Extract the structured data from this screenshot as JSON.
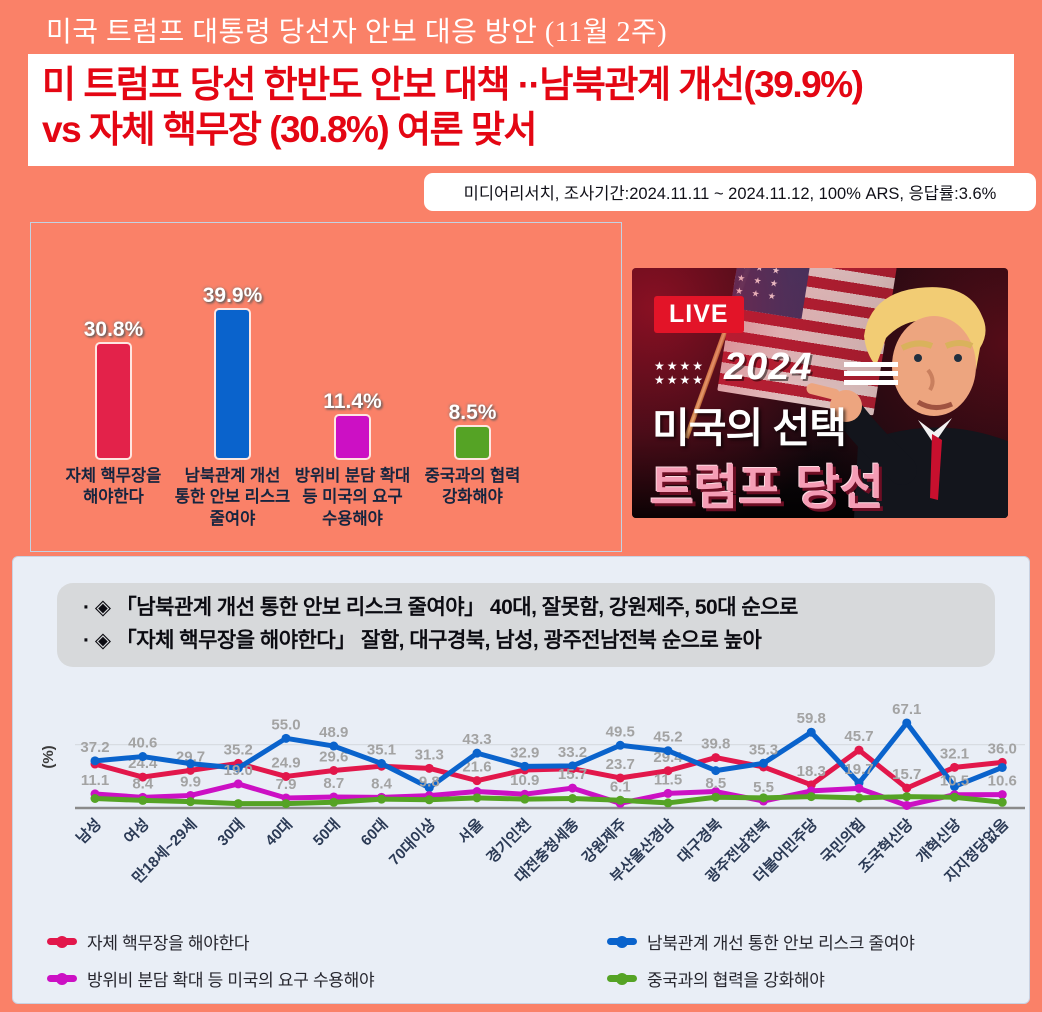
{
  "page_title": "미국 트럼프 대통령 당선자 안보 대응 방안 (11월 2주)",
  "headline": {
    "line1": "미 트럼프 당선 한반도 안보 대책 ··남북관계 개선(39.9%)",
    "line2": "vs 자체 핵무장 (30.8%) 여론 맞서"
  },
  "survey_note": "미디어리서치, 조사기간:2024.11.11 ~ 2024.11.12, 100% ARS, 응답률:3.6%",
  "banner": {
    "live_badge": "LIVE",
    "stars_row1": "★★★★",
    "stars_row2": "★★★★",
    "year": "2024",
    "line1": "미국의 선택",
    "line2": "트럼프 당선"
  },
  "insights": {
    "bullet1": "· ◈ 「남북관계 개선 통한 안보 리스크 줄여야」 40대, 잘못함, 강원제주, 50대 순으로",
    "bullet2": "· ◈ 「자체 핵무장을 해야한다」 잘함, 대구경북, 남성, 광주전남전북 순으로 높아"
  },
  "chart_data": [
    {
      "type": "bar",
      "title": "",
      "categories": [
        [
          "자체 핵무장을",
          "해야한다"
        ],
        [
          "남북관계 개선",
          "통한 안보 리스크",
          "줄여야"
        ],
        [
          "방위비 분담 확대",
          "등 미국의 요구",
          "수용해야"
        ],
        [
          "중국과의 협력",
          "강화해야"
        ]
      ],
      "values": [
        30.8,
        39.9,
        11.4,
        8.5
      ],
      "value_labels": [
        "30.8%",
        "39.9%",
        "11.4%",
        "8.5%"
      ],
      "colors": [
        "#E3224A",
        "#0A63CC",
        "#CC10C4",
        "#55A325"
      ],
      "ylim": [
        0,
        45
      ],
      "grid": false
    },
    {
      "type": "line",
      "ylabel": "(%)",
      "ylim": [
        0,
        88
      ],
      "gridline_at": 50,
      "legend_position": "bottom",
      "categories": [
        "남성",
        "여성",
        "만18세~29세",
        "30대",
        "40대",
        "50대",
        "60대",
        "70대이상",
        "서울",
        "경기인천",
        "대전충청세종",
        "강원제주",
        "부산울산경남",
        "대구경북",
        "광주전남전북",
        "더불어민주당",
        "국민의힘",
        "조국혁신당",
        "개혁신당",
        "지지정당없음"
      ],
      "series": [
        {
          "name": "자체 핵무장을 해야한다",
          "color": "#E2174B",
          "values": [
            34.7,
            24.4,
            29.7,
            35.2,
            24.9,
            29.6,
            33.0,
            31.3,
            21.6,
            30.0,
            31.0,
            23.7,
            29.4,
            39.8,
            32.4,
            18.3,
            45.7,
            15.7,
            32.1,
            36.0
          ],
          "labeled": [
            false,
            true,
            true,
            true,
            true,
            true,
            false,
            true,
            true,
            false,
            false,
            true,
            true,
            true,
            false,
            true,
            true,
            true,
            true,
            true
          ]
        },
        {
          "name": "남북관계 개선 통한 안보 리스크 줄여야",
          "color": "#0A63CC",
          "values": [
            37.2,
            40.6,
            35.0,
            31.5,
            55.0,
            48.9,
            35.1,
            16.0,
            43.3,
            32.9,
            33.2,
            49.5,
            45.2,
            29.5,
            35.3,
            59.8,
            19.7,
            67.1,
            17.0,
            32.0
          ],
          "labeled": [
            true,
            true,
            false,
            false,
            true,
            true,
            true,
            false,
            true,
            true,
            true,
            true,
            true,
            false,
            true,
            true,
            true,
            true,
            false,
            false
          ]
        },
        {
          "name": "방위비 분담 확대 등 미국의 요구 수용해야",
          "color": "#CC10C4",
          "values": [
            11.1,
            8.4,
            9.9,
            19.0,
            7.9,
            8.7,
            8.4,
            9.8,
            13.0,
            10.9,
            15.7,
            3.7,
            11.5,
            13.0,
            5.5,
            13.5,
            15.5,
            2.0,
            10.5,
            10.6
          ],
          "labeled": [
            true,
            true,
            true,
            true,
            true,
            true,
            true,
            true,
            false,
            true,
            true,
            false,
            true,
            false,
            true,
            false,
            false,
            false,
            true,
            true
          ]
        },
        {
          "name": "중국과의 협력을 강화해야",
          "color": "#55A325",
          "values": [
            7.5,
            6.0,
            5.0,
            3.5,
            3.5,
            4.5,
            7.0,
            6.5,
            8.0,
            7.0,
            7.5,
            6.1,
            4.0,
            8.5,
            8.0,
            9.0,
            8.0,
            9.0,
            8.5,
            4.5
          ],
          "labeled": [
            false,
            false,
            false,
            false,
            false,
            false,
            false,
            false,
            false,
            false,
            false,
            true,
            false,
            true,
            false,
            false,
            false,
            false,
            false,
            false
          ]
        }
      ]
    }
  ],
  "legend_items": [
    {
      "label": "자체 핵무장을 해야한다",
      "color": "#E2174B"
    },
    {
      "label": "남북관계 개선 통한 안보 리스크 줄여야",
      "color": "#0A63CC"
    },
    {
      "label": "방위비 분담 확대 등 미국의 요구 수용해야",
      "color": "#CC10C4"
    },
    {
      "label": "중국과의 협력을 강화해야",
      "color": "#55A325"
    }
  ]
}
